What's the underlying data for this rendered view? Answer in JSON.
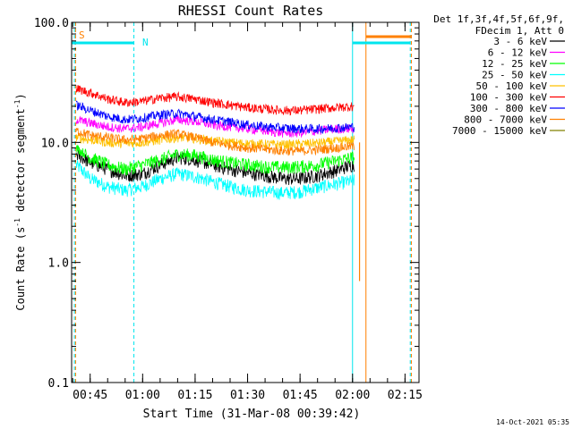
{
  "chart_data": {
    "type": "line",
    "title": "RHESSI Count Rates",
    "xlabel": "Start Time (31-Mar-08 00:39:42)",
    "ylabel": "Count Rate (s⁻¹ detector segment⁻¹)",
    "ylabel_parts": [
      "Count Rate (s",
      "-1",
      " detector segment",
      "-1",
      ")"
    ],
    "y_scale": "log",
    "ylim": [
      0.1,
      100.0
    ],
    "xlim": [
      "00:39:42",
      "02:19:00"
    ],
    "x_ticks": [
      "00:45",
      "01:00",
      "01:15",
      "01:30",
      "01:45",
      "02:00",
      "02:15"
    ],
    "y_ticks": [
      "0.1",
      "1.0",
      "10.0",
      "100.0"
    ],
    "grid": false,
    "legend_position": "right",
    "legend_header": [
      "Det 1f,3f,4f,5f,6f,9f,",
      "FDecim 1, Att 0"
    ],
    "data_end": "02:00:30",
    "series": [
      {
        "name": "3 - 6 keV",
        "color": "#000000",
        "x": [
          "00:41:00",
          "00:45:00",
          "00:50:00",
          "00:55:00",
          "01:00:00",
          "01:05:00",
          "01:10:00",
          "01:15:00",
          "01:20:00",
          "01:25:00",
          "01:30:00",
          "01:35:00",
          "01:40:00",
          "01:45:00",
          "01:50:00",
          "01:55:00",
          "02:00:00"
        ],
        "values": [
          8.0,
          6.8,
          6.0,
          5.3,
          5.5,
          6.5,
          7.5,
          7.2,
          6.5,
          6.0,
          5.6,
          5.3,
          5.0,
          5.0,
          5.3,
          5.8,
          6.5
        ]
      },
      {
        "name": "6 - 12 keV",
        "color": "#ff00ff",
        "x": [
          "00:41:00",
          "00:45:00",
          "00:50:00",
          "00:55:00",
          "01:00:00",
          "01:05:00",
          "01:10:00",
          "01:15:00",
          "01:20:00",
          "01:25:00",
          "01:30:00",
          "01:35:00",
          "01:40:00",
          "01:45:00",
          "01:50:00",
          "01:55:00",
          "02:00:00"
        ],
        "values": [
          15.5,
          14.5,
          13.5,
          13.0,
          13.5,
          14.5,
          15.5,
          15.0,
          14.0,
          13.5,
          13.0,
          12.5,
          12.0,
          12.0,
          12.5,
          13.0,
          13.0
        ]
      },
      {
        "name": "12 - 25 keV",
        "color": "#00ff00",
        "x": [
          "00:41:00",
          "00:45:00",
          "00:50:00",
          "00:55:00",
          "01:00:00",
          "01:05:00",
          "01:10:00",
          "01:15:00",
          "01:20:00",
          "01:25:00",
          "01:30:00",
          "01:35:00",
          "01:40:00",
          "01:45:00",
          "01:50:00",
          "01:55:00",
          "02:00:00"
        ],
        "values": [
          9.0,
          7.5,
          6.5,
          6.0,
          6.5,
          7.2,
          8.0,
          7.8,
          7.2,
          6.8,
          6.5,
          6.3,
          6.2,
          6.3,
          6.5,
          7.0,
          7.5
        ]
      },
      {
        "name": "25 - 50 keV",
        "color": "#00ffff",
        "x": [
          "00:41:00",
          "00:45:00",
          "00:50:00",
          "00:55:00",
          "01:00:00",
          "01:05:00",
          "01:10:00",
          "01:15:00",
          "01:20:00",
          "01:25:00",
          "01:30:00",
          "01:35:00",
          "01:40:00",
          "01:45:00",
          "01:50:00",
          "01:55:00",
          "02:00:00"
        ],
        "values": [
          6.5,
          5.0,
          4.3,
          4.0,
          4.3,
          5.0,
          5.5,
          5.2,
          4.7,
          4.3,
          4.0,
          3.9,
          3.8,
          3.9,
          4.2,
          4.5,
          4.8
        ]
      },
      {
        "name": "50 - 100 keV",
        "color": "#ffc000",
        "x": [
          "00:41:00",
          "00:45:00",
          "00:50:00",
          "00:55:00",
          "01:00:00",
          "01:05:00",
          "01:10:00",
          "01:15:00",
          "01:20:00",
          "01:25:00",
          "01:30:00",
          "01:35:00",
          "01:40:00",
          "01:45:00",
          "01:50:00",
          "01:55:00",
          "02:00:00"
        ],
        "values": [
          11.0,
          10.5,
          10.0,
          9.8,
          10.0,
          10.5,
          11.0,
          10.8,
          10.3,
          10.0,
          9.8,
          9.7,
          9.6,
          9.7,
          9.9,
          10.2,
          10.5
        ]
      },
      {
        "name": "100 - 300 keV",
        "color": "#ff0000",
        "x": [
          "00:41:00",
          "00:45:00",
          "00:50:00",
          "00:55:00",
          "01:00:00",
          "01:05:00",
          "01:10:00",
          "01:15:00",
          "01:20:00",
          "01:25:00",
          "01:30:00",
          "01:35:00",
          "01:40:00",
          "01:45:00",
          "01:50:00",
          "01:55:00",
          "02:00:00"
        ],
        "values": [
          28.0,
          26.0,
          23.0,
          21.5,
          22.0,
          23.5,
          24.0,
          23.0,
          21.5,
          20.5,
          19.5,
          19.0,
          18.5,
          18.5,
          19.0,
          19.5,
          20.0
        ]
      },
      {
        "name": "300 - 800 keV",
        "color": "#0000ff",
        "x": [
          "00:41:00",
          "00:45:00",
          "00:50:00",
          "00:55:00",
          "01:00:00",
          "01:05:00",
          "01:10:00",
          "01:15:00",
          "01:20:00",
          "01:25:00",
          "01:30:00",
          "01:35:00",
          "01:40:00",
          "01:45:00",
          "01:50:00",
          "01:55:00",
          "02:00:00"
        ],
        "values": [
          20.5,
          18.5,
          16.5,
          15.5,
          16.0,
          17.0,
          17.5,
          16.5,
          15.5,
          14.8,
          14.0,
          13.5,
          13.2,
          13.0,
          13.0,
          13.2,
          13.5
        ]
      },
      {
        "name": "800 - 7000 keV",
        "color": "#ff8000",
        "x": [
          "00:41:00",
          "00:45:00",
          "00:50:00",
          "00:55:00",
          "01:00:00",
          "01:05:00",
          "01:10:00",
          "01:15:00",
          "01:20:00",
          "01:25:00",
          "01:30:00",
          "01:35:00",
          "01:40:00",
          "01:45:00",
          "01:50:00",
          "01:55:00",
          "02:00:00"
        ],
        "values": [
          12.5,
          11.5,
          11.0,
          10.5,
          10.8,
          11.5,
          11.8,
          11.0,
          10.0,
          9.5,
          9.0,
          8.8,
          8.5,
          8.5,
          8.7,
          9.0,
          9.3
        ]
      },
      {
        "name": "7000 - 15000 keV",
        "color": "#808000",
        "x": [],
        "values": []
      }
    ],
    "annotations": {
      "attenuator_label": "S",
      "saa_label": "N",
      "cyan_dashed_lines": [
        "00:40:30",
        "00:57:30",
        "02:16:30"
      ],
      "cyan_solid_line": "02:00:00",
      "orange_dashed_lines": [
        "00:40:50",
        "02:16:50"
      ],
      "orange_solid_line": "02:03:50",
      "cyan_top_segments": [
        [
          "00:39:42",
          "00:57:30"
        ],
        [
          "02:00:00",
          "02:16:30"
        ]
      ],
      "orange_top_segment": [
        "02:03:50",
        "02:16:50"
      ],
      "orange_drop": {
        "time": "02:02:00",
        "from": 10.0,
        "to": 0.7
      }
    }
  },
  "footer": {
    "timestamp": "14-Oct-2021 05:35"
  },
  "colors": {
    "axis": "#000000",
    "background": "#ffffff",
    "annotation_cyan": "#00e5ee",
    "annotation_orange": "#ff8000"
  }
}
